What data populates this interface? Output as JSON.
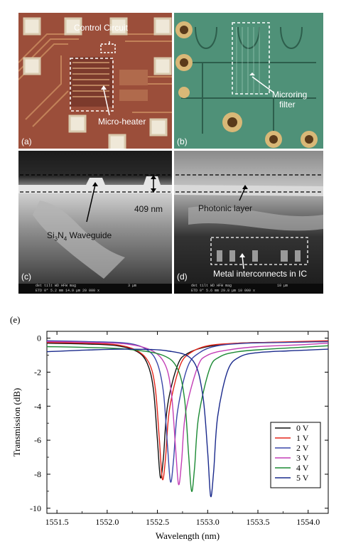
{
  "panels": {
    "a": {
      "label": "(a)",
      "annotations": {
        "control": "Control Circuit",
        "heater": "Micro-heater"
      }
    },
    "b": {
      "label": "(b)",
      "annotations": {
        "filter_line1": "Microring",
        "filter_line2": "filter"
      }
    },
    "c": {
      "label": "(c)",
      "annotations": {
        "thickness": "409 nm",
        "waveguide": "Si3N4 Waveguide"
      },
      "sem_info": {
        "line1": "det  tilt  WD  HFW  mag",
        "line2": "ETD  0°  5.2 mm  14.9 μm  20 000 x",
        "scale": "3 μm"
      }
    },
    "d": {
      "label": "(d)",
      "annotations": {
        "photonic": "Photonic layer",
        "metal": "Metal interconnects in IC"
      },
      "sem_info": {
        "line1": "det  tilt  WD  HFW  mag",
        "line2": "ETD  0°  5.6 mm  29.8 μm  10 000 x",
        "scale": "10 μm"
      }
    },
    "e": {
      "label": "(e)"
    }
  },
  "colors": {
    "0 V": "#111111",
    "1 V": "#e3261b",
    "2 V": "#3a46a8",
    "3 V": "#c33fb6",
    "4 V": "#1c8a34",
    "5 V": "#1a2a8c",
    "chip_bg": "#9b4e3a",
    "pcb_bg": "#4f9178"
  },
  "chart_data": {
    "type": "line",
    "title": "",
    "xlabel": "Wavelength (nm)",
    "ylabel": "Transmission (dB)",
    "xlim": [
      1551.4,
      1554.2
    ],
    "ylim": [
      -10.3,
      0.4
    ],
    "xticks": [
      1551.5,
      1552.0,
      1552.5,
      1553.0,
      1553.5,
      1554.0
    ],
    "xtick_labels": [
      "1551.5",
      "1552.0",
      "1552.5",
      "1553.0",
      "1553.5",
      "1554.0"
    ],
    "yticks": [
      0,
      -2,
      -4,
      -6,
      -8,
      -10
    ],
    "ytick_labels": [
      "0",
      "-2",
      "-4",
      "-6",
      "-8",
      "-10"
    ],
    "legend_position": "bottom-right",
    "grid": false,
    "series": [
      {
        "name": "0 V",
        "x": [
          1551.4,
          1551.8,
          1552.1,
          1552.3,
          1552.4,
          1552.46,
          1552.5,
          1552.53,
          1552.56,
          1552.6,
          1552.7,
          1552.8,
          1553.0,
          1553.3,
          1553.6,
          1554.2
        ],
        "y": [
          -0.3,
          -0.35,
          -0.45,
          -0.8,
          -1.5,
          -3.0,
          -6.0,
          -8.2,
          -7.0,
          -4.0,
          -1.6,
          -0.9,
          -0.5,
          -0.3,
          -0.25,
          -0.2
        ]
      },
      {
        "name": "1 V",
        "x": [
          1551.4,
          1551.8,
          1552.1,
          1552.3,
          1552.42,
          1552.48,
          1552.52,
          1552.55,
          1552.58,
          1552.62,
          1552.72,
          1552.82,
          1553.0,
          1553.3,
          1553.6,
          1554.2
        ],
        "y": [
          -0.25,
          -0.3,
          -0.4,
          -0.75,
          -1.5,
          -3.0,
          -6.0,
          -8.3,
          -7.1,
          -4.2,
          -1.7,
          -0.9,
          -0.45,
          -0.3,
          -0.25,
          -0.15
        ]
      },
      {
        "name": "2 V",
        "x": [
          1551.4,
          1551.8,
          1552.2,
          1552.4,
          1552.5,
          1552.56,
          1552.6,
          1552.63,
          1552.66,
          1552.7,
          1552.8,
          1552.92,
          1553.1,
          1553.4,
          1553.8,
          1554.2
        ],
        "y": [
          -0.15,
          -0.2,
          -0.3,
          -0.7,
          -1.5,
          -3.2,
          -6.3,
          -8.45,
          -7.2,
          -4.3,
          -1.7,
          -0.85,
          -0.45,
          -0.3,
          -0.25,
          -0.2
        ]
      },
      {
        "name": "3 V",
        "x": [
          1551.4,
          1551.8,
          1552.2,
          1552.45,
          1552.58,
          1552.64,
          1552.68,
          1552.71,
          1552.74,
          1552.78,
          1552.9,
          1553.0,
          1553.2,
          1553.5,
          1553.9,
          1554.2
        ],
        "y": [
          -0.2,
          -0.25,
          -0.35,
          -0.75,
          -1.6,
          -3.3,
          -6.4,
          -8.6,
          -7.3,
          -4.4,
          -1.7,
          -1.0,
          -0.7,
          -0.5,
          -0.4,
          -0.3
        ]
      },
      {
        "name": "4 V",
        "x": [
          1551.4,
          1551.8,
          1552.2,
          1552.55,
          1552.7,
          1552.77,
          1552.81,
          1552.84,
          1552.87,
          1552.91,
          1553.02,
          1553.12,
          1553.3,
          1553.6,
          1553.9,
          1554.2
        ],
        "y": [
          -0.5,
          -0.55,
          -0.65,
          -1.0,
          -1.8,
          -3.6,
          -6.8,
          -9.0,
          -7.6,
          -4.6,
          -1.8,
          -1.1,
          -0.8,
          -0.65,
          -0.55,
          -0.45
        ]
      },
      {
        "name": "5 V",
        "x": [
          1551.4,
          1551.8,
          1552.2,
          1552.6,
          1552.85,
          1552.95,
          1553.0,
          1553.03,
          1553.06,
          1553.1,
          1553.2,
          1553.32,
          1553.5,
          1553.8,
          1554.0,
          1554.2
        ],
        "y": [
          -0.8,
          -0.7,
          -0.65,
          -0.75,
          -1.3,
          -3.3,
          -6.7,
          -9.3,
          -7.8,
          -4.6,
          -1.9,
          -1.1,
          -0.85,
          -0.75,
          -0.7,
          -0.65
        ]
      }
    ]
  }
}
